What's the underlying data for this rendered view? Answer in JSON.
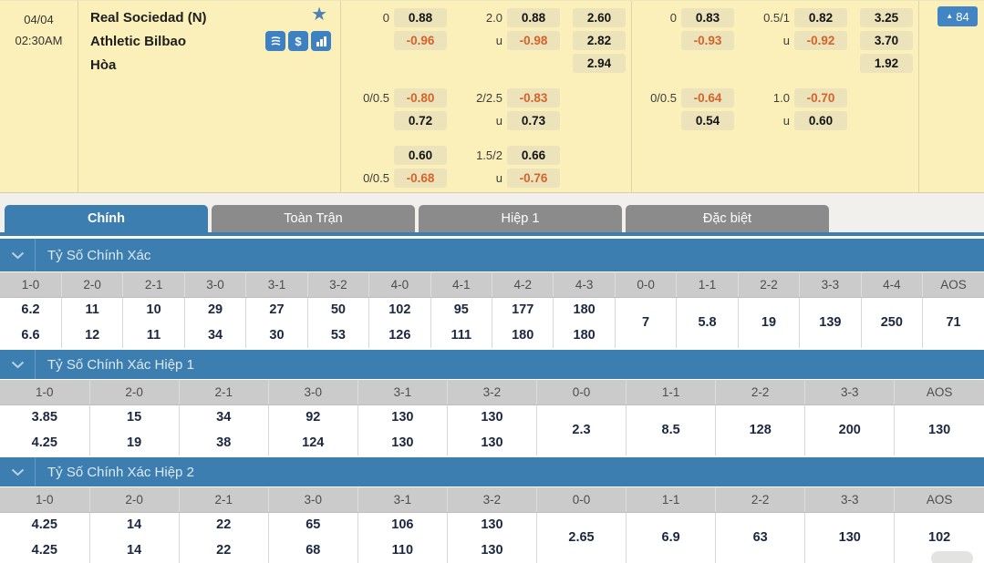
{
  "colors": {
    "accent_blue": "#3c7eb0",
    "icon_blue": "#3d81c3",
    "panel_yellow": "#fbf0ba",
    "odds_cell_tan": "#ece3ba",
    "negative_orange": "#d4632a",
    "inactive_tab_gray": "#8b8b8b",
    "table_header_gray": "#cbcbcb"
  },
  "match": {
    "date": "04/04",
    "time": "02:30AM",
    "home_team": "Real Sociedad (N)",
    "away_team": "Athletic Bilbao",
    "draw_label": "Hòa",
    "update_count": "84",
    "icons": [
      "favorite-star-icon",
      "bet-slip-icon",
      "cash-out-icon",
      "stats-icon"
    ]
  },
  "odds_panels": [
    {
      "name": "full-time-odds",
      "groups": [
        {
          "rows": [
            {
              "l1": "0",
              "v1": "0.88",
              "l2": "2.0",
              "v2": "0.88",
              "v3": "2.60"
            },
            {
              "l1": "",
              "v1": "-0.96",
              "l2": "u",
              "v2": "-0.98",
              "v3": "2.82"
            },
            {
              "l1": "",
              "v1": "",
              "l2": "",
              "v2": "",
              "v3": "2.94"
            }
          ]
        },
        {
          "rows": [
            {
              "l1": "0/0.5",
              "v1": "-0.80",
              "l2": "2/2.5",
              "v2": "-0.83",
              "v3": ""
            },
            {
              "l1": "",
              "v1": "0.72",
              "l2": "u",
              "v2": "0.73",
              "v3": ""
            }
          ]
        },
        {
          "rows": [
            {
              "l1": "",
              "v1": "0.60",
              "l2": "1.5/2",
              "v2": "0.66",
              "v3": ""
            },
            {
              "l1": "0/0.5",
              "v1": "-0.68",
              "l2": "u",
              "v2": "-0.76",
              "v3": ""
            }
          ]
        }
      ]
    },
    {
      "name": "first-half-odds",
      "groups": [
        {
          "rows": [
            {
              "l1": "0",
              "v1": "0.83",
              "l2": "0.5/1",
              "v2": "0.82",
              "v3": "3.25"
            },
            {
              "l1": "",
              "v1": "-0.93",
              "l2": "u",
              "v2": "-0.92",
              "v3": "3.70"
            },
            {
              "l1": "",
              "v1": "",
              "l2": "",
              "v2": "",
              "v3": "1.92"
            }
          ]
        },
        {
          "rows": [
            {
              "l1": "0/0.5",
              "v1": "-0.64",
              "l2": "1.0",
              "v2": "-0.70",
              "v3": ""
            },
            {
              "l1": "",
              "v1": "0.54",
              "l2": "u",
              "v2": "0.60",
              "v3": ""
            }
          ]
        }
      ]
    }
  ],
  "tabs": [
    {
      "label": "Chính",
      "active": true
    },
    {
      "label": "Toàn Trận",
      "active": false
    },
    {
      "label": "Hiệp 1",
      "active": false
    },
    {
      "label": "Đặc biệt",
      "active": false
    }
  ],
  "sections": [
    {
      "title": "Tỷ Số Chính Xác",
      "columns": [
        "1-0",
        "2-0",
        "2-1",
        "3-0",
        "3-1",
        "3-2",
        "4-0",
        "4-1",
        "4-2",
        "4-3",
        "0-0",
        "1-1",
        "2-2",
        "3-3",
        "4-4",
        "AOS"
      ],
      "cells": [
        [
          "6.2",
          "6.6"
        ],
        [
          "11",
          "12"
        ],
        [
          "10",
          "11"
        ],
        [
          "29",
          "34"
        ],
        [
          "27",
          "30"
        ],
        [
          "50",
          "53"
        ],
        [
          "102",
          "126"
        ],
        [
          "95",
          "111"
        ],
        [
          "177",
          "180"
        ],
        [
          "180",
          "180"
        ],
        [
          "7"
        ],
        [
          "5.8"
        ],
        [
          "19"
        ],
        [
          "139"
        ],
        [
          "250"
        ],
        [
          "71"
        ]
      ]
    },
    {
      "title": "Tỷ Số Chính Xác Hiệp 1",
      "columns": [
        "1-0",
        "2-0",
        "2-1",
        "3-0",
        "3-1",
        "3-2",
        "0-0",
        "1-1",
        "2-2",
        "3-3",
        "AOS"
      ],
      "cells": [
        [
          "3.85",
          "4.25"
        ],
        [
          "15",
          "19"
        ],
        [
          "34",
          "38"
        ],
        [
          "92",
          "124"
        ],
        [
          "130",
          "130"
        ],
        [
          "130",
          "130"
        ],
        [
          "2.3"
        ],
        [
          "8.5"
        ],
        [
          "128"
        ],
        [
          "200"
        ],
        [
          "130"
        ]
      ]
    },
    {
      "title": "Tỷ Số Chính Xác Hiệp 2",
      "columns": [
        "1-0",
        "2-0",
        "2-1",
        "3-0",
        "3-1",
        "3-2",
        "0-0",
        "1-1",
        "2-2",
        "3-3",
        "AOS"
      ],
      "cells": [
        [
          "4.25",
          "4.25"
        ],
        [
          "14",
          "14"
        ],
        [
          "22",
          "22"
        ],
        [
          "65",
          "68"
        ],
        [
          "106",
          "110"
        ],
        [
          "130",
          "130"
        ],
        [
          "2.65"
        ],
        [
          "6.9"
        ],
        [
          "63"
        ],
        [
          "130"
        ],
        [
          "102"
        ]
      ]
    }
  ]
}
